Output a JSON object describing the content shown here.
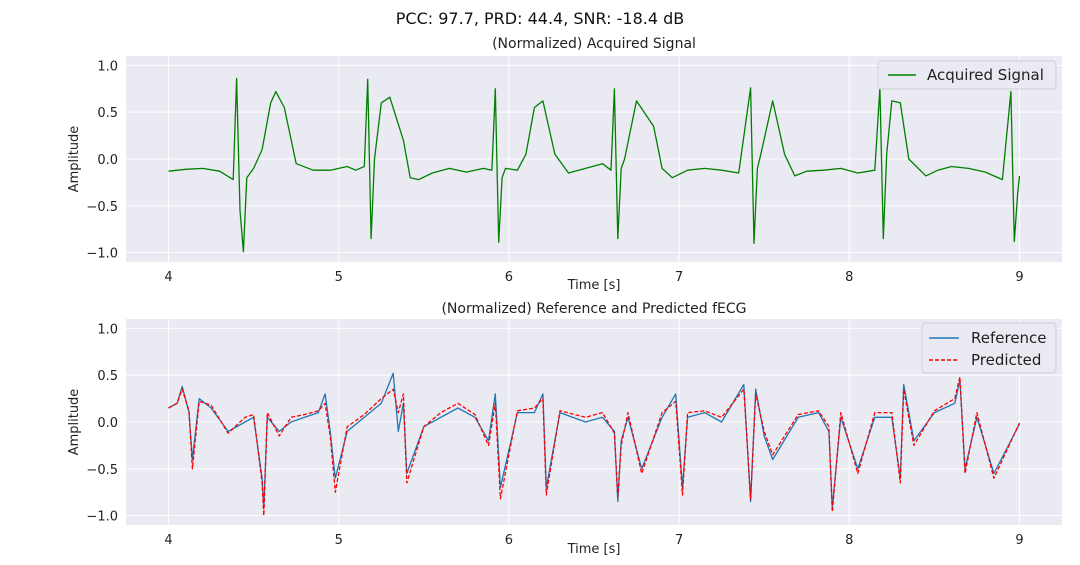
{
  "suptitle": "PCC: 97.7, PRD: 44.4, SNR: -18.4 dB",
  "chart_data": [
    {
      "type": "line",
      "title": "(Normalized) Acquired Signal",
      "xlabel": "Time [s]",
      "ylabel": "Amplitude",
      "xlim": [
        3.75,
        9.25
      ],
      "ylim": [
        -1.1,
        1.1
      ],
      "xticks": [
        4,
        5,
        6,
        7,
        8,
        9
      ],
      "xtick_labels": [
        "4",
        "5",
        "6",
        "7",
        "8",
        "9"
      ],
      "yticks": [
        -1.0,
        -0.5,
        0.0,
        0.5,
        1.0
      ],
      "ytick_labels": [
        "−1.0",
        "−0.5",
        "0.0",
        "0.5",
        "1.0"
      ],
      "grid": true,
      "legend_position": "top-right",
      "series": [
        {
          "name": "Acquired Signal",
          "color": "#007f00",
          "style": "solid",
          "x": [
            4.0,
            4.1,
            4.2,
            4.3,
            4.38,
            4.4,
            4.42,
            4.44,
            4.46,
            4.5,
            4.55,
            4.6,
            4.63,
            4.68,
            4.75,
            4.85,
            4.95,
            5.05,
            5.1,
            5.15,
            5.17,
            5.19,
            5.21,
            5.25,
            5.3,
            5.38,
            5.42,
            5.47,
            5.55,
            5.65,
            5.75,
            5.85,
            5.9,
            5.92,
            5.94,
            5.96,
            5.98,
            6.05,
            6.1,
            6.15,
            6.2,
            6.27,
            6.35,
            6.45,
            6.55,
            6.6,
            6.62,
            6.64,
            6.66,
            6.68,
            6.75,
            6.85,
            6.9,
            6.96,
            7.05,
            7.15,
            7.25,
            7.35,
            7.42,
            7.44,
            7.46,
            7.48,
            7.55,
            7.62,
            7.68,
            7.75,
            7.85,
            7.95,
            8.05,
            8.15,
            8.18,
            8.2,
            8.22,
            8.25,
            8.3,
            8.35,
            8.45,
            8.52,
            8.6,
            8.7,
            8.8,
            8.9,
            8.95,
            8.97,
            8.99,
            9.0
          ],
          "y": [
            -0.13,
            -0.11,
            -0.1,
            -0.13,
            -0.22,
            0.86,
            -0.55,
            -0.99,
            -0.2,
            -0.1,
            0.1,
            0.6,
            0.72,
            0.55,
            -0.05,
            -0.12,
            -0.12,
            -0.08,
            -0.12,
            -0.08,
            0.85,
            -0.85,
            0.0,
            0.6,
            0.66,
            0.2,
            -0.2,
            -0.22,
            -0.15,
            -0.1,
            -0.14,
            -0.1,
            -0.12,
            0.75,
            -0.89,
            -0.2,
            -0.1,
            -0.12,
            0.05,
            0.55,
            0.62,
            0.05,
            -0.15,
            -0.1,
            -0.05,
            -0.12,
            0.75,
            -0.85,
            -0.1,
            0.0,
            0.62,
            0.35,
            -0.1,
            -0.2,
            -0.12,
            -0.1,
            -0.12,
            -0.15,
            0.76,
            -0.9,
            -0.1,
            0.05,
            0.62,
            0.05,
            -0.18,
            -0.13,
            -0.12,
            -0.1,
            -0.15,
            -0.12,
            0.76,
            -0.85,
            0.05,
            0.62,
            0.6,
            0.0,
            -0.18,
            -0.12,
            -0.08,
            -0.1,
            -0.14,
            -0.22,
            0.72,
            -0.88,
            -0.35,
            -0.18
          ]
        }
      ]
    },
    {
      "type": "line",
      "title": "(Normalized) Reference and Predicted fECG",
      "xlabel": "Time [s]",
      "ylabel": "Amplitude",
      "xlim": [
        3.75,
        9.25
      ],
      "ylim": [
        -1.1,
        1.1
      ],
      "xticks": [
        4,
        5,
        6,
        7,
        8,
        9
      ],
      "xtick_labels": [
        "4",
        "5",
        "6",
        "7",
        "8",
        "9"
      ],
      "yticks": [
        -1.0,
        -0.5,
        0.0,
        0.5,
        1.0
      ],
      "ytick_labels": [
        "−1.0",
        "−0.5",
        "0.0",
        "0.5",
        "1.0"
      ],
      "grid": true,
      "legend_position": "top-right",
      "series": [
        {
          "name": "Reference",
          "color": "#1f77b4",
          "style": "solid",
          "x": [
            4.0,
            4.05,
            4.08,
            4.12,
            4.14,
            4.18,
            4.25,
            4.35,
            4.45,
            4.5,
            4.55,
            4.56,
            4.58,
            4.65,
            4.72,
            4.8,
            4.88,
            4.92,
            4.95,
            4.98,
            5.05,
            5.15,
            5.25,
            5.32,
            5.35,
            5.38,
            5.4,
            5.5,
            5.6,
            5.7,
            5.8,
            5.88,
            5.92,
            5.95,
            6.05,
            6.15,
            6.2,
            6.22,
            6.3,
            6.45,
            6.55,
            6.62,
            6.64,
            6.66,
            6.7,
            6.78,
            6.9,
            6.98,
            7.02,
            7.05,
            7.15,
            7.25,
            7.38,
            7.42,
            7.45,
            7.5,
            7.55,
            7.7,
            7.82,
            7.88,
            7.9,
            7.95,
            8.05,
            8.15,
            8.25,
            8.3,
            8.32,
            8.38,
            8.5,
            8.62,
            8.65,
            8.68,
            8.75,
            8.85,
            9.0
          ],
          "y": [
            0.15,
            0.2,
            0.38,
            0.1,
            -0.4,
            0.25,
            0.15,
            -0.1,
            0.0,
            0.05,
            -0.6,
            -0.92,
            0.05,
            -0.1,
            0.0,
            0.05,
            0.1,
            0.3,
            -0.1,
            -0.6,
            -0.1,
            0.05,
            0.2,
            0.52,
            -0.1,
            0.2,
            -0.55,
            -0.05,
            0.05,
            0.15,
            0.05,
            -0.2,
            0.3,
            -0.7,
            0.1,
            0.1,
            0.3,
            -0.7,
            0.1,
            0.0,
            0.05,
            -0.1,
            -0.85,
            -0.2,
            0.05,
            -0.5,
            0.05,
            0.3,
            -0.7,
            0.05,
            0.1,
            0.0,
            0.4,
            -0.85,
            0.35,
            -0.15,
            -0.4,
            0.05,
            0.1,
            -0.1,
            -0.92,
            0.05,
            -0.5,
            0.05,
            0.05,
            -0.6,
            0.4,
            -0.2,
            0.1,
            0.2,
            0.45,
            -0.5,
            0.05,
            -0.55,
            -0.02
          ]
        },
        {
          "name": "Predicted",
          "color": "#ff0000",
          "style": "dashed",
          "x": [
            4.0,
            4.05,
            4.08,
            4.12,
            4.14,
            4.18,
            4.25,
            4.35,
            4.45,
            4.5,
            4.55,
            4.56,
            4.58,
            4.65,
            4.72,
            4.8,
            4.88,
            4.92,
            4.95,
            4.98,
            5.05,
            5.15,
            5.25,
            5.32,
            5.35,
            5.38,
            5.4,
            5.5,
            5.6,
            5.7,
            5.8,
            5.88,
            5.92,
            5.95,
            6.05,
            6.15,
            6.2,
            6.22,
            6.3,
            6.45,
            6.55,
            6.62,
            6.64,
            6.66,
            6.7,
            6.78,
            6.9,
            6.98,
            7.02,
            7.05,
            7.15,
            7.25,
            7.38,
            7.42,
            7.45,
            7.5,
            7.55,
            7.7,
            7.82,
            7.88,
            7.9,
            7.95,
            8.05,
            8.15,
            8.25,
            8.3,
            8.32,
            8.38,
            8.5,
            8.62,
            8.65,
            8.68,
            8.75,
            8.85,
            9.0
          ],
          "y": [
            0.15,
            0.2,
            0.35,
            0.12,
            -0.5,
            0.22,
            0.18,
            -0.12,
            0.05,
            0.08,
            -0.65,
            -1.0,
            0.1,
            -0.15,
            0.05,
            0.08,
            0.12,
            0.2,
            -0.15,
            -0.75,
            -0.05,
            0.08,
            0.25,
            0.35,
            0.1,
            0.3,
            -0.65,
            -0.05,
            0.1,
            0.2,
            0.08,
            -0.25,
            0.2,
            -0.82,
            0.12,
            0.15,
            0.25,
            -0.78,
            0.12,
            0.05,
            0.1,
            -0.12,
            -0.8,
            -0.25,
            0.1,
            -0.55,
            0.1,
            0.22,
            -0.78,
            0.1,
            0.12,
            0.05,
            0.35,
            -0.82,
            0.3,
            -0.1,
            -0.35,
            0.08,
            0.12,
            -0.05,
            -0.96,
            0.1,
            -0.55,
            0.1,
            0.1,
            -0.65,
            0.35,
            -0.25,
            0.12,
            0.25,
            0.48,
            -0.55,
            0.1,
            -0.6,
            -0.01
          ]
        }
      ]
    }
  ]
}
